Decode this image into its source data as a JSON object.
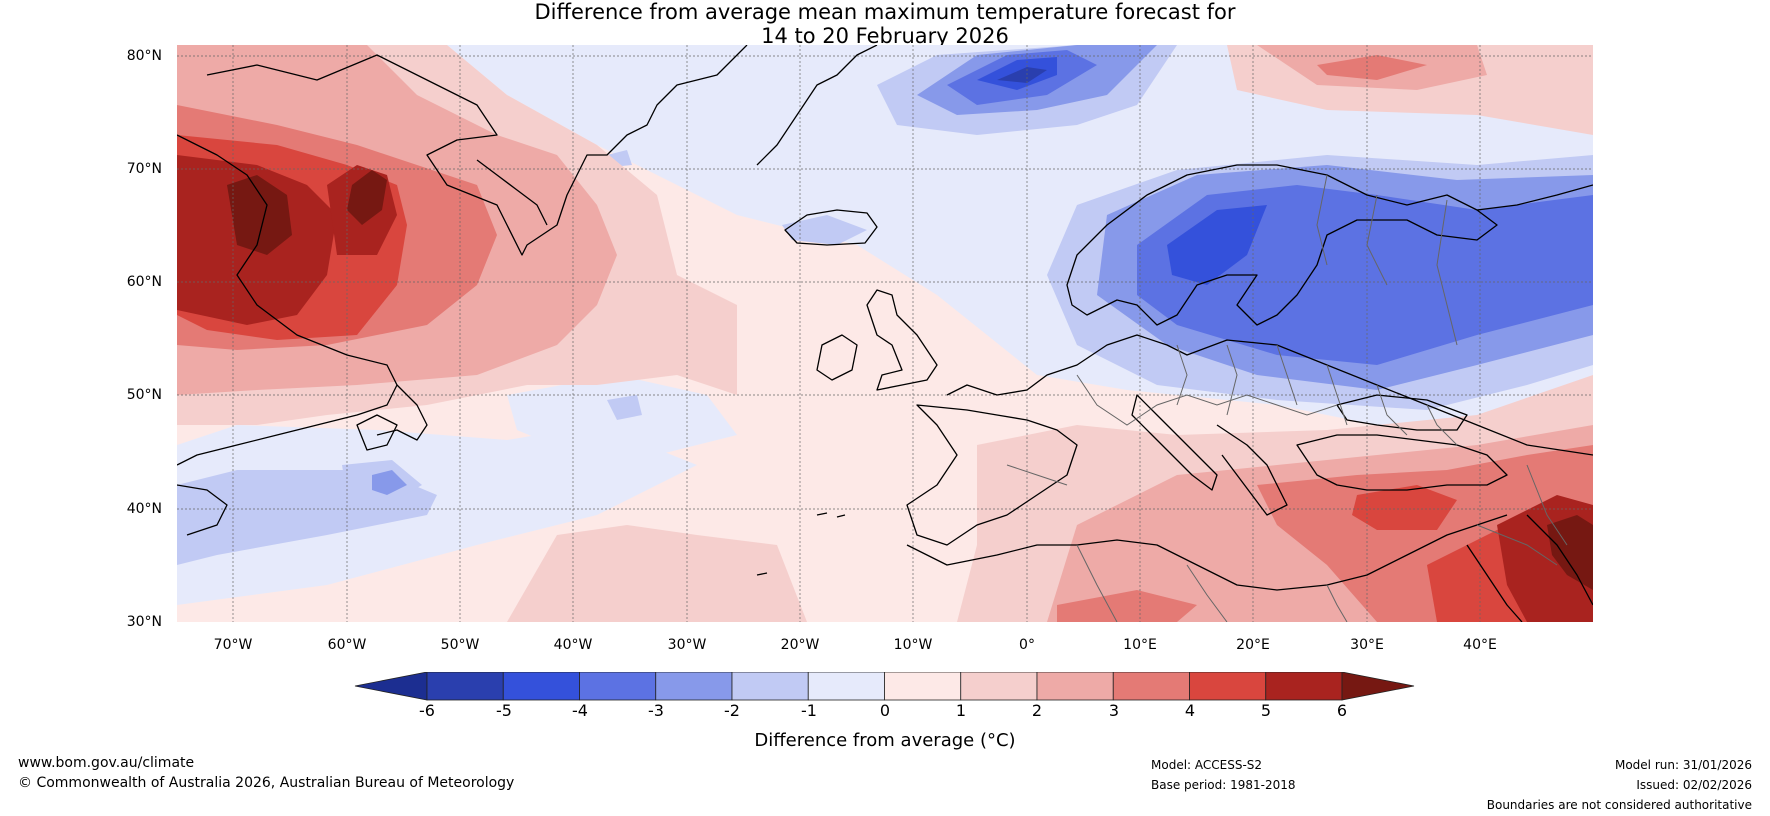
{
  "title": {
    "line1": "Difference from average mean maximum temperature forecast for",
    "line2": "14 to 20 February 2026"
  },
  "map": {
    "latitude_labels": [
      "80°N",
      "70°N",
      "60°N",
      "50°N",
      "40°N",
      "30°N"
    ],
    "longitude_labels": [
      "70°W",
      "60°W",
      "50°W",
      "40°W",
      "30°W",
      "20°W",
      "10°W",
      "0°",
      "10°E",
      "20°E",
      "30°E",
      "40°E"
    ],
    "extent": {
      "lon_min": -75,
      "lon_max": 50,
      "lat_min": 30,
      "lat_max": 81
    },
    "anomaly_regions": [
      {
        "region": "North-east Canada / Labrador",
        "anomaly_c": 5
      },
      {
        "region": "South-west Greenland coast",
        "anomaly_c": 6
      },
      {
        "region": "Scandinavia",
        "anomaly_c": -4
      },
      {
        "region": "Svalbard / Barents Sea",
        "anomaly_c": -5
      },
      {
        "region": "Turkey / Aegean",
        "anomaly_c": 4
      },
      {
        "region": "Middle East",
        "anomaly_c": 6
      },
      {
        "region": "Iceland",
        "anomaly_c": -2
      },
      {
        "region": "Western Atlantic near 40°N",
        "anomaly_c": -2
      }
    ]
  },
  "colorbar": {
    "ticks": [
      "-6",
      "-5",
      "-4",
      "-3",
      "-2",
      "-1",
      "0",
      "1",
      "2",
      "3",
      "4",
      "5",
      "6"
    ],
    "colors": [
      "#1c2e91",
      "#2a3fae",
      "#3451db",
      "#5c72e3",
      "#8799ea",
      "#c1caf4",
      "#e6eafb",
      "#fde9e7",
      "#f5cfcd",
      "#eeaaa7",
      "#e47a75",
      "#d9463e",
      "#a9231f",
      "#761812"
    ],
    "label": "Difference from average (",
    "label_unit": "°C",
    "label_end": ")"
  },
  "footer": {
    "website": "www.bom.gov.au/climate",
    "copyright": "© Commonwealth of Australia 2026, Australian Bureau of Meteorology",
    "model": "Model: ACCESS-S2",
    "base_period": "Base period: 1981-2018",
    "model_run": "Model run: 31/01/2026",
    "issued": "Issued: 02/02/2026",
    "disclaimer": "Boundaries are not considered authoritative"
  }
}
